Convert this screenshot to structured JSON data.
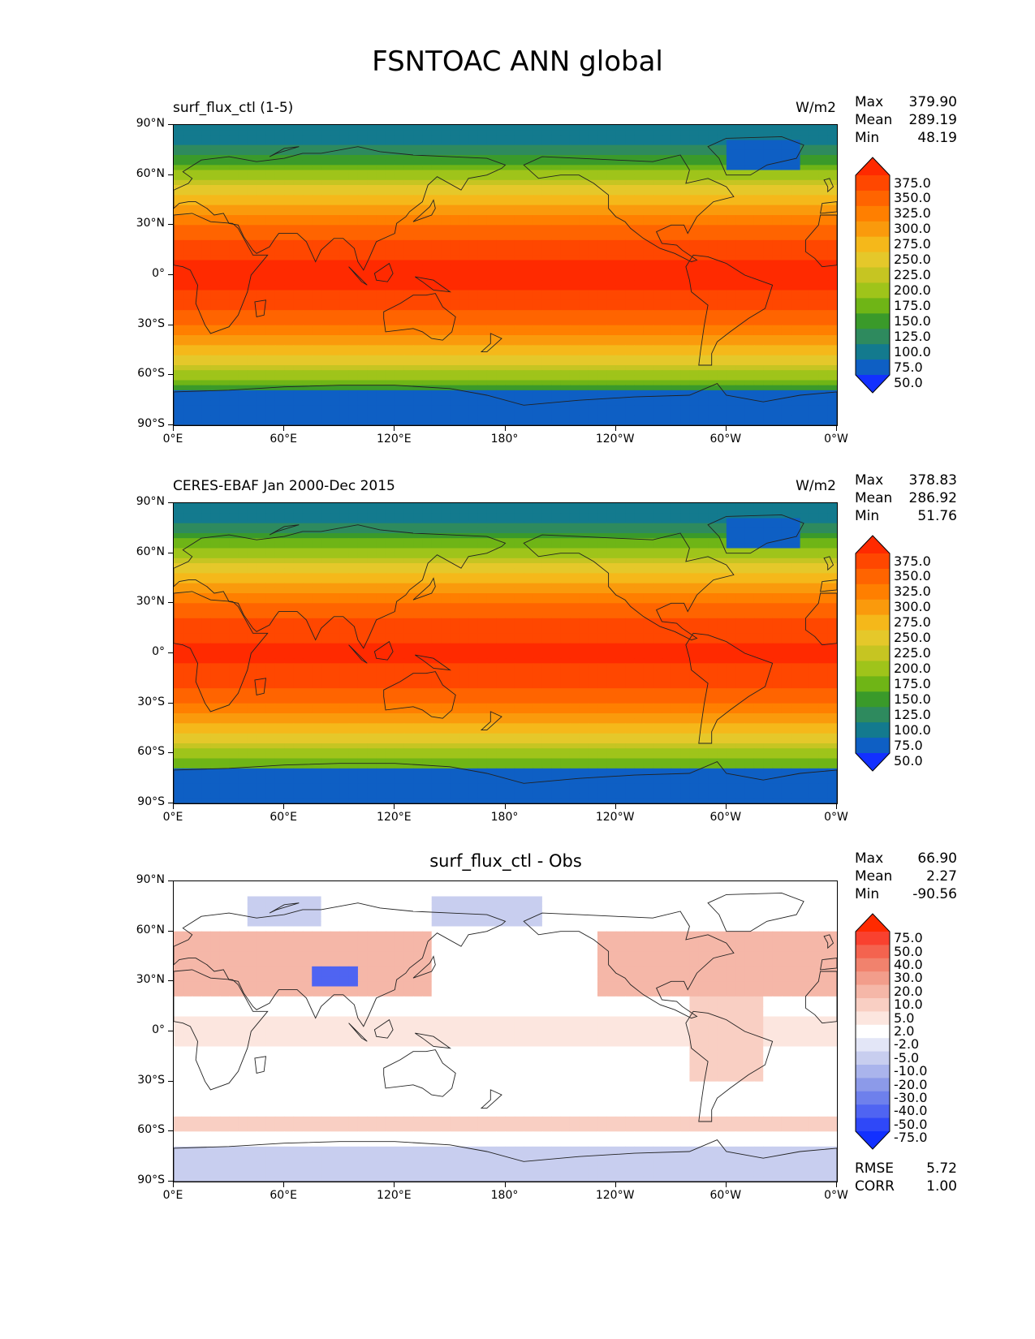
{
  "title": "FSNTOAC ANN global",
  "x_ticks": [
    "0°E",
    "60°E",
    "120°E",
    "180°",
    "120°W",
    "60°W",
    "0°W"
  ],
  "y_ticks": [
    "90°N",
    "60°N",
    "30°N",
    "0°",
    "30°S",
    "60°S",
    "90°S"
  ],
  "panels": [
    {
      "label_left": "surf_flux_ctl (1-5)",
      "label_center": "",
      "unit": "W/m2",
      "stats": [
        {
          "name": "Max",
          "value": "379.90"
        },
        {
          "name": "Mean",
          "value": "289.19"
        },
        {
          "name": "Min",
          "value": "48.19"
        }
      ],
      "colorbar": {
        "labels": [
          "375.0",
          "350.0",
          "325.0",
          "300.0",
          "275.0",
          "250.0",
          "225.0",
          "200.0",
          "175.0",
          "150.0",
          "125.0",
          "100.0",
          "75.0",
          "50.0"
        ],
        "colors": [
          "#ff2a00",
          "#ff4700",
          "#ff6400",
          "#ff7f00",
          "#fa9a0c",
          "#f5b81a",
          "#e5c82a",
          "#c6c522",
          "#9fc41a",
          "#6fb516",
          "#3a9a2a",
          "#2e8a5e",
          "#137a8e",
          "#0e5fc4",
          "#1230ff"
        ]
      },
      "field": "control"
    },
    {
      "label_left": "CERES-EBAF Jan 2000-Dec 2015",
      "label_center": "",
      "unit": "W/m2",
      "stats": [
        {
          "name": "Max",
          "value": "378.83"
        },
        {
          "name": "Mean",
          "value": "286.92"
        },
        {
          "name": "Min",
          "value": "51.76"
        }
      ],
      "colorbar": {
        "labels": [
          "375.0",
          "350.0",
          "325.0",
          "300.0",
          "275.0",
          "250.0",
          "225.0",
          "200.0",
          "175.0",
          "150.0",
          "125.0",
          "100.0",
          "75.0",
          "50.0"
        ],
        "colors": [
          "#ff2a00",
          "#ff4700",
          "#ff6400",
          "#ff7f00",
          "#fa9a0c",
          "#f5b81a",
          "#e5c82a",
          "#c6c522",
          "#9fc41a",
          "#6fb516",
          "#3a9a2a",
          "#2e8a5e",
          "#137a8e",
          "#0e5fc4",
          "#1230ff"
        ]
      },
      "field": "obs"
    },
    {
      "label_left": "",
      "label_center": "surf_flux_ctl - Obs",
      "unit": "",
      "stats": [
        {
          "name": "Max",
          "value": "66.90"
        },
        {
          "name": "Mean",
          "value": "2.27"
        },
        {
          "name": "Min",
          "value": "-90.56"
        }
      ],
      "extra_stats": [
        {
          "name": "RMSE",
          "value": "5.72"
        },
        {
          "name": "CORR",
          "value": "1.00"
        }
      ],
      "colorbar": {
        "labels": [
          "75.0",
          "50.0",
          "40.0",
          "30.0",
          "20.0",
          "10.0",
          "5.0",
          "2.0",
          "-2.0",
          "-5.0",
          "-10.0",
          "-20.0",
          "-30.0",
          "-40.0",
          "-50.0",
          "-75.0"
        ],
        "colors": [
          "#ff2a00",
          "#f9412f",
          "#f4634f",
          "#f1826d",
          "#f29d8b",
          "#f5b7a8",
          "#f9cfc3",
          "#fce6df",
          "#ffffff",
          "#e3e6f7",
          "#c8ceef",
          "#aab4ec",
          "#8c9ae9",
          "#6e80ec",
          "#4f64f2",
          "#2f48f8",
          "#1230ff"
        ]
      },
      "field": "diff"
    }
  ]
}
